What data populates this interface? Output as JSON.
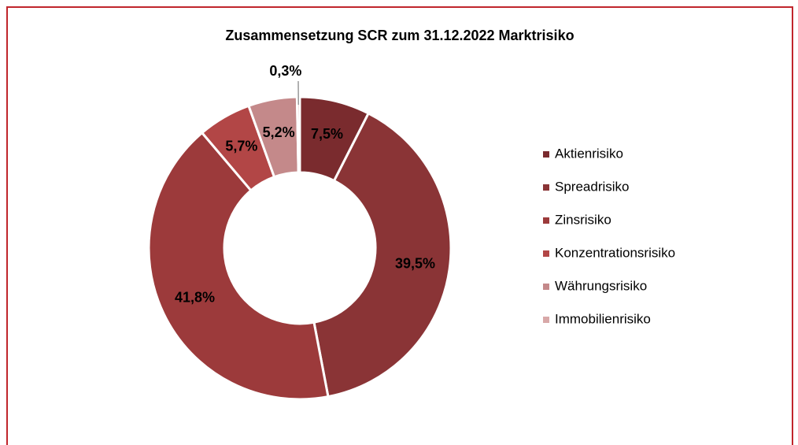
{
  "chart_data": {
    "type": "donut",
    "title": "Zusammensetzung SCR zum 31.12.2022 Marktrisiko",
    "categories": [
      "Aktienrisiko",
      "Spreadrisiko",
      "Zinsrisiko",
      "Konzentrationsrisiko",
      "Währungsrisiko",
      "Immobilienrisiko"
    ],
    "values": [
      7.5,
      39.5,
      41.8,
      5.7,
      5.2,
      0.3
    ],
    "value_labels": [
      "7,5%",
      "39,5%",
      "41,8%",
      "5,7%",
      "5,2%",
      "0,3%"
    ],
    "colors": [
      "#7a2b2e",
      "#8a3436",
      "#9c3a3b",
      "#b24646",
      "#c4898a",
      "#d8a8a8"
    ],
    "legend": "right"
  }
}
